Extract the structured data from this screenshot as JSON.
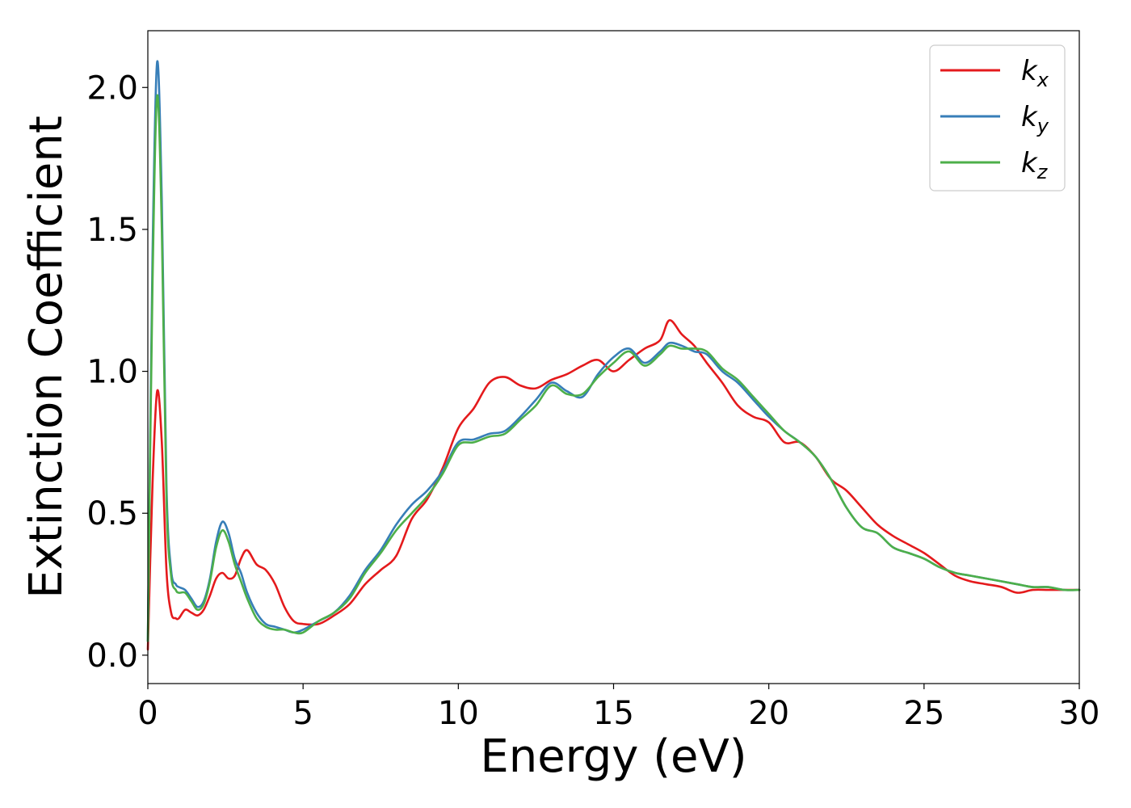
{
  "chart_data": {
    "type": "line",
    "xlabel": "Energy (eV)",
    "ylabel": "Extinction Coefficient",
    "xlim": [
      0,
      30
    ],
    "ylim": [
      -0.1,
      2.2
    ],
    "xticks": [
      0,
      5,
      10,
      15,
      20,
      25,
      30
    ],
    "xtick_labels": [
      "0",
      "5",
      "10",
      "15",
      "20",
      "25",
      "30"
    ],
    "yticks": [
      0.0,
      0.5,
      1.0,
      1.5,
      2.0
    ],
    "ytick_labels": [
      "0.0",
      "0.5",
      "1.0",
      "1.5",
      "2.0"
    ],
    "grid": false,
    "legend_position": "top-right",
    "series": [
      {
        "name": "k_x",
        "label_main": "k",
        "label_sub": "x",
        "color": "#e41a1c",
        "x": [
          0,
          0.15,
          0.3,
          0.45,
          0.6,
          0.75,
          0.9,
          1.0,
          1.2,
          1.4,
          1.6,
          1.8,
          2.0,
          2.2,
          2.4,
          2.6,
          2.8,
          3.0,
          3.2,
          3.5,
          3.8,
          4.1,
          4.4,
          4.7,
          5.0,
          5.5,
          6.0,
          6.5,
          7.0,
          7.5,
          8.0,
          8.5,
          9.0,
          9.5,
          10.0,
          10.5,
          11.0,
          11.5,
          12.0,
          12.5,
          13.0,
          13.5,
          14.0,
          14.5,
          15.0,
          15.5,
          16.0,
          16.5,
          16.8,
          17.2,
          17.6,
          18.0,
          18.5,
          19.0,
          19.5,
          20.0,
          20.5,
          21.0,
          21.5,
          22.0,
          22.5,
          23.0,
          23.5,
          24.0,
          24.5,
          25.0,
          25.5,
          26.0,
          26.5,
          27.0,
          27.5,
          28.0,
          28.5,
          29.0,
          29.5,
          30.0
        ],
        "y": [
          0.02,
          0.6,
          0.93,
          0.75,
          0.3,
          0.15,
          0.13,
          0.13,
          0.16,
          0.15,
          0.14,
          0.16,
          0.21,
          0.27,
          0.29,
          0.27,
          0.28,
          0.34,
          0.37,
          0.32,
          0.3,
          0.25,
          0.17,
          0.12,
          0.11,
          0.11,
          0.14,
          0.18,
          0.25,
          0.3,
          0.35,
          0.48,
          0.55,
          0.66,
          0.8,
          0.87,
          0.96,
          0.98,
          0.95,
          0.94,
          0.97,
          0.99,
          1.02,
          1.04,
          1.0,
          1.04,
          1.08,
          1.11,
          1.18,
          1.13,
          1.09,
          1.03,
          0.96,
          0.88,
          0.84,
          0.82,
          0.75,
          0.75,
          0.7,
          0.62,
          0.58,
          0.52,
          0.46,
          0.42,
          0.39,
          0.36,
          0.32,
          0.28,
          0.26,
          0.25,
          0.24,
          0.22,
          0.23,
          0.23,
          0.23,
          0.23
        ]
      },
      {
        "name": "k_y",
        "label_main": "k",
        "label_sub": "y",
        "color": "#377eb8",
        "x": [
          0,
          0.15,
          0.3,
          0.45,
          0.6,
          0.75,
          0.9,
          1.0,
          1.2,
          1.4,
          1.6,
          1.8,
          2.0,
          2.2,
          2.4,
          2.6,
          2.8,
          3.0,
          3.2,
          3.5,
          3.8,
          4.1,
          4.4,
          4.7,
          5.0,
          5.5,
          6.0,
          6.5,
          7.0,
          7.5,
          8.0,
          8.5,
          9.0,
          9.5,
          10.0,
          10.5,
          11.0,
          11.5,
          12.0,
          12.5,
          13.0,
          13.5,
          14.0,
          14.5,
          15.0,
          15.5,
          16.0,
          16.5,
          16.8,
          17.2,
          17.6,
          18.0,
          18.5,
          19.0,
          19.5,
          20.0,
          20.5,
          21.0,
          21.5,
          22.0,
          22.5,
          23.0,
          23.5,
          24.0,
          24.5,
          25.0,
          25.5,
          26.0,
          26.5,
          27.0,
          27.5,
          28.0,
          28.5,
          29.0,
          29.5,
          30.0
        ],
        "y": [
          0.05,
          1.4,
          2.09,
          1.6,
          0.6,
          0.3,
          0.25,
          0.24,
          0.23,
          0.2,
          0.17,
          0.19,
          0.27,
          0.4,
          0.47,
          0.43,
          0.34,
          0.29,
          0.22,
          0.15,
          0.11,
          0.1,
          0.09,
          0.08,
          0.09,
          0.12,
          0.15,
          0.21,
          0.3,
          0.37,
          0.46,
          0.53,
          0.58,
          0.65,
          0.75,
          0.76,
          0.78,
          0.79,
          0.84,
          0.9,
          0.96,
          0.93,
          0.91,
          0.99,
          1.05,
          1.08,
          1.03,
          1.07,
          1.1,
          1.09,
          1.07,
          1.06,
          1.0,
          0.96,
          0.9,
          0.84,
          0.79,
          0.75,
          0.7,
          0.62,
          0.52,
          0.45,
          0.43,
          0.38,
          0.36,
          0.34,
          0.31,
          0.29,
          0.28,
          0.27,
          0.26,
          0.25,
          0.24,
          0.24,
          0.23,
          0.23
        ]
      },
      {
        "name": "k_z",
        "label_main": "k",
        "label_sub": "z",
        "color": "#4daf4a",
        "x": [
          0,
          0.15,
          0.3,
          0.45,
          0.6,
          0.75,
          0.9,
          1.0,
          1.2,
          1.4,
          1.6,
          1.8,
          2.0,
          2.2,
          2.4,
          2.6,
          2.8,
          3.0,
          3.2,
          3.5,
          3.8,
          4.1,
          4.4,
          4.7,
          5.0,
          5.5,
          6.0,
          6.5,
          7.0,
          7.5,
          8.0,
          8.5,
          9.0,
          9.5,
          10.0,
          10.5,
          11.0,
          11.5,
          12.0,
          12.5,
          13.0,
          13.5,
          14.0,
          14.5,
          15.0,
          15.5,
          16.0,
          16.5,
          16.8,
          17.2,
          17.6,
          18.0,
          18.5,
          19.0,
          19.5,
          20.0,
          20.5,
          21.0,
          21.5,
          22.0,
          22.5,
          23.0,
          23.5,
          24.0,
          24.5,
          25.0,
          25.5,
          26.0,
          26.5,
          27.0,
          27.5,
          28.0,
          28.5,
          29.0,
          29.5,
          30.0
        ],
        "y": [
          0.05,
          1.3,
          1.97,
          1.5,
          0.55,
          0.28,
          0.23,
          0.22,
          0.22,
          0.19,
          0.16,
          0.18,
          0.26,
          0.38,
          0.44,
          0.4,
          0.32,
          0.26,
          0.2,
          0.13,
          0.1,
          0.09,
          0.09,
          0.08,
          0.08,
          0.12,
          0.15,
          0.2,
          0.29,
          0.36,
          0.44,
          0.5,
          0.56,
          0.64,
          0.74,
          0.75,
          0.77,
          0.78,
          0.83,
          0.88,
          0.95,
          0.92,
          0.92,
          0.98,
          1.03,
          1.07,
          1.02,
          1.06,
          1.09,
          1.08,
          1.08,
          1.07,
          1.01,
          0.97,
          0.91,
          0.85,
          0.79,
          0.75,
          0.7,
          0.62,
          0.52,
          0.45,
          0.43,
          0.38,
          0.36,
          0.34,
          0.31,
          0.29,
          0.28,
          0.27,
          0.26,
          0.25,
          0.24,
          0.24,
          0.23,
          0.23
        ]
      }
    ]
  }
}
